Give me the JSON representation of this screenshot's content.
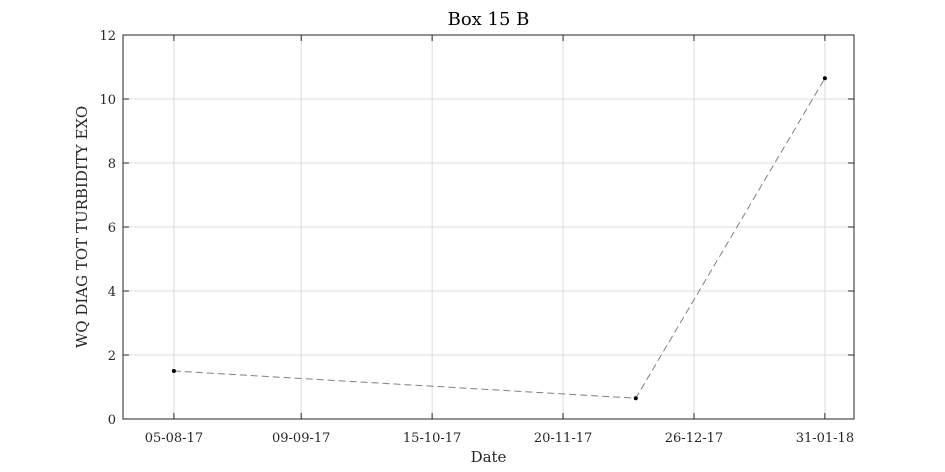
{
  "chart_data": {
    "type": "line",
    "title": "Box 15 B",
    "xlabel": "Date",
    "ylabel": "WQ DIAG TOT TURBIDITY EXO",
    "x_tick_labels": [
      "05-08-17",
      "09-09-17",
      "15-10-17",
      "20-11-17",
      "26-12-17",
      "31-01-18"
    ],
    "x_ticks": [
      "2017-08-05",
      "2017-09-09",
      "2017-10-15",
      "2017-11-20",
      "2017-12-26",
      "2018-01-31"
    ],
    "xlim": [
      "2017-07-22",
      "2018-02-08"
    ],
    "y_ticks": [
      0,
      2,
      4,
      6,
      8,
      10,
      12
    ],
    "ylim": [
      0,
      12
    ],
    "grid": true,
    "series": [
      {
        "x": [
          "2017-08-05",
          "2017-12-10",
          "2018-01-31"
        ],
        "y": [
          1.5,
          0.65,
          10.65
        ],
        "line_style": "dashed",
        "line_color": "#808080",
        "marker_color": "#000000"
      }
    ]
  }
}
